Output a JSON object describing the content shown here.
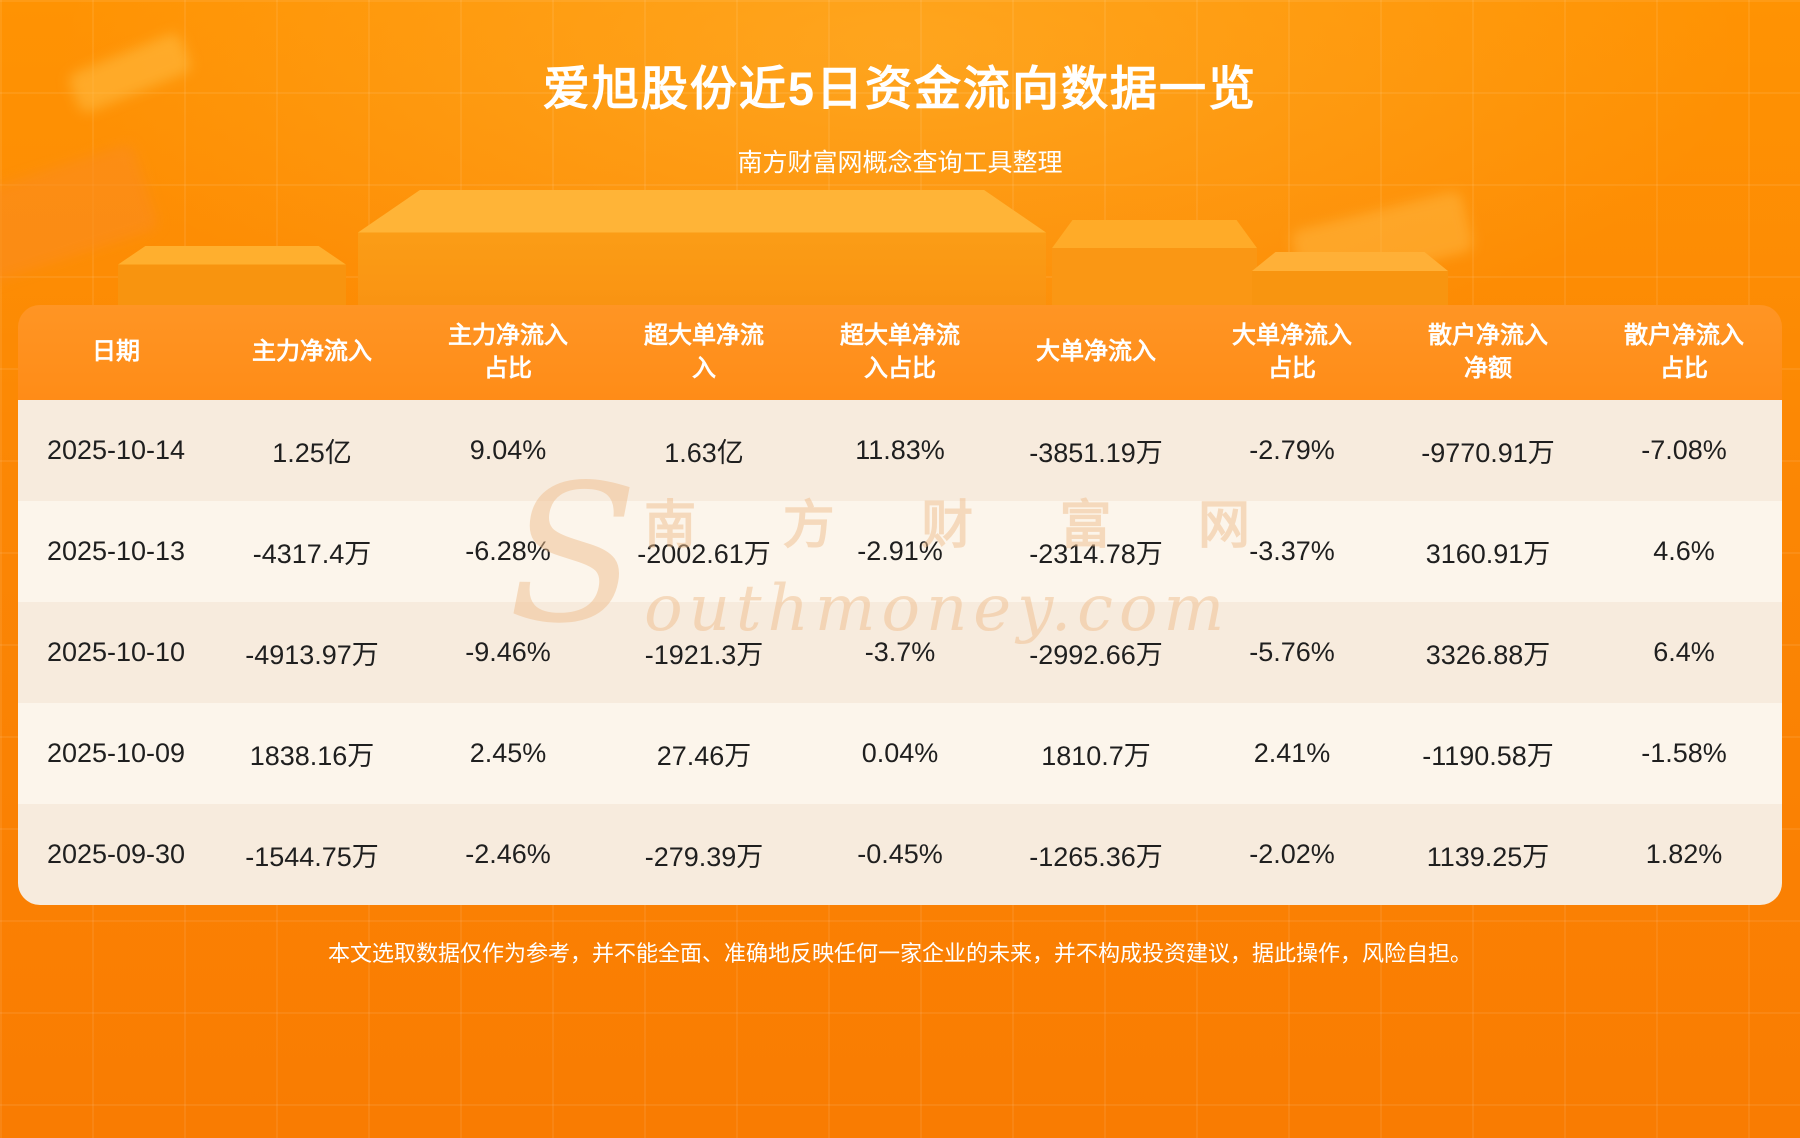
{
  "header": {
    "title": "爱旭股份近5日资金流向数据一览",
    "subtitle": "南方财富网概念查询工具整理"
  },
  "watermark": {
    "chinese": "南 方 财 富 网",
    "initial": "S",
    "rest": "outhmoney.com"
  },
  "footer": {
    "disclaimer": "本文选取数据仅作为参考，并不能全面、准确地反映任何一家企业的未来，并不构成投资建议，据此操作，风险自担。"
  },
  "colors": {
    "background_top": "#ff9303",
    "background_bottom": "#f97c02",
    "table_header": "#ff8c17",
    "row_beige": "#f7ebdd",
    "row_light": "#fcf5eb",
    "text_dark": "#1f1f1f",
    "text_white": "#ffffff",
    "watermark": "#f0bf8e"
  },
  "chart_data": {
    "type": "table",
    "title": "爱旭股份近5日资金流向数据一览",
    "columns": [
      "日期",
      "主力净流入",
      "主力净流入占比",
      "超大单净流入",
      "超大单净流入占比",
      "大单净流入",
      "大单净流入占比",
      "散户净流入净额",
      "散户净流入占比"
    ],
    "rows": [
      [
        "2025-10-14",
        "1.25亿",
        "9.04%",
        "1.63亿",
        "11.83%",
        "-3851.19万",
        "-2.79%",
        "-9770.91万",
        "-7.08%"
      ],
      [
        "2025-10-13",
        "-4317.4万",
        "-6.28%",
        "-2002.61万",
        "-2.91%",
        "-2314.78万",
        "-3.37%",
        "3160.91万",
        "4.6%"
      ],
      [
        "2025-10-10",
        "-4913.97万",
        "-9.46%",
        "-1921.3万",
        "-3.7%",
        "-2992.66万",
        "-5.76%",
        "3326.88万",
        "6.4%"
      ],
      [
        "2025-10-09",
        "1838.16万",
        "2.45%",
        "27.46万",
        "0.04%",
        "1810.7万",
        "2.41%",
        "-1190.58万",
        "-1.58%"
      ],
      [
        "2025-09-30",
        "-1544.75万",
        "-2.46%",
        "-279.39万",
        "-0.45%",
        "-1265.36万",
        "-2.02%",
        "1139.25万",
        "1.82%"
      ]
    ]
  }
}
